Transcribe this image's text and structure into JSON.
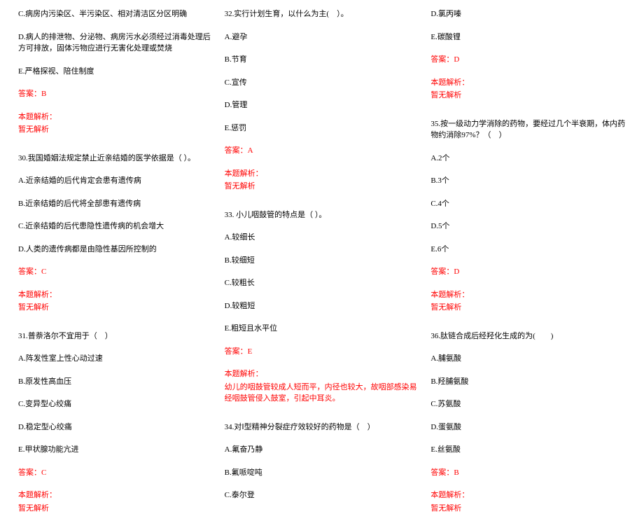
{
  "text_color": "#000000",
  "answer_color": "#ff0000",
  "background_color": "#ffffff",
  "font_family": "SimSun",
  "font_size": 11,
  "columns": 3,
  "col1": {
    "q29_optC": "C.病房内污染区、半污染区、相对清洁区分区明确",
    "q29_optD": "D.病人的排泄物、分泌物、病房污水必须经过消毒处理后方可排放，固体污物应进行无害化处理或焚烧",
    "q29_optE": "E.严格探视、陪住制度",
    "q29_ans": "答案：B",
    "q29_exp_label": "本题解析：",
    "q29_exp": "暂无解析",
    "q30_stem": "30.我国婚姻法规定禁止近亲结婚的医学依据是（ ）。",
    "q30_optA": "A.近亲结婚的后代肯定会患有遗传病",
    "q30_optB": "B.近亲结婚的后代将全部患有遗传病",
    "q30_optC": "C.近亲结婚的后代患隐性遗传病的机会增大",
    "q30_optD": "D.人类的遗传病都是由隐性基因所控制的",
    "q30_ans": "答案：C",
    "q30_exp_label": "本题解析：",
    "q30_exp": "暂无解析",
    "q31_stem": "31.普萘洛尔不宜用于（　）",
    "q31_optA": "A.阵发性室上性心动过速",
    "q31_optB": "B.原发性高血压",
    "q31_optC": "C.变异型心绞痛",
    "q31_optD": "D.稳定型心绞痛",
    "q31_optE": "E.甲状腺功能亢进",
    "q31_ans": "答案：C",
    "q31_exp_label": "本题解析：",
    "q31_exp": "暂无解析"
  },
  "col2": {
    "q32_stem": "32.实行计划生育，以什么为主(　）。",
    "q32_optA": "A.避孕",
    "q32_optB": "B.节育",
    "q32_optC": "C.宣传",
    "q32_optD": "D.管理",
    "q32_optE": "E.惩罚",
    "q32_ans": "答案：A",
    "q32_exp_label": "本题解析：",
    "q32_exp": "暂无解析",
    "q33_stem": "33. 小儿咽鼓管的特点是（ ）。",
    "q33_optA": "A.较细长",
    "q33_optB": "B.较细短",
    "q33_optC": "C.较粗长",
    "q33_optD": "D.较粗短",
    "q33_optE": "E.粗短且水平位",
    "q33_ans": "答案：E",
    "q33_exp_label": "本题解析：",
    "q33_exp": "幼儿的咽鼓管较成人短而平，内径也较大，故咽部感染易经咽鼓管侵入鼓室，引起中耳炎。",
    "q34_stem": "34.对Ⅰ型精神分裂症疗效较好的药物是（　）",
    "q34_optA": "A.氟奋乃静",
    "q34_optB": "B.氟哌啶吨",
    "q34_optC": "C.泰尔登"
  },
  "col3": {
    "q34_optD": "D.氯丙嗪",
    "q34_optE": "E.碳酸锂",
    "q34_ans": "答案：D",
    "q34_exp_label": "本题解析：",
    "q34_exp": "暂无解析",
    "q35_stem": "35.按一级动力学消除的药物，要经过几个半衰期，体内药物约消除97%？（　）",
    "q35_optA": "A.2个",
    "q35_optB": "B.3个",
    "q35_optC": "C.4个",
    "q35_optD": "D.5个",
    "q35_optE": "E.6个",
    "q35_ans": "答案：D",
    "q35_exp_label": "本题解析：",
    "q35_exp": "暂无解析",
    "q36_stem": "36.肽链合成后经羟化生成的为(　　)",
    "q36_optA": "A.脯氨酸",
    "q36_optB": "B.羟脯氨酸",
    "q36_optC": "C.苏氨酸",
    "q36_optD": "D.蛋氨酸",
    "q36_optE": "E.丝氨酸",
    "q36_ans": "答案：B",
    "q36_exp_label": "本题解析：",
    "q36_exp": "暂无解析"
  }
}
